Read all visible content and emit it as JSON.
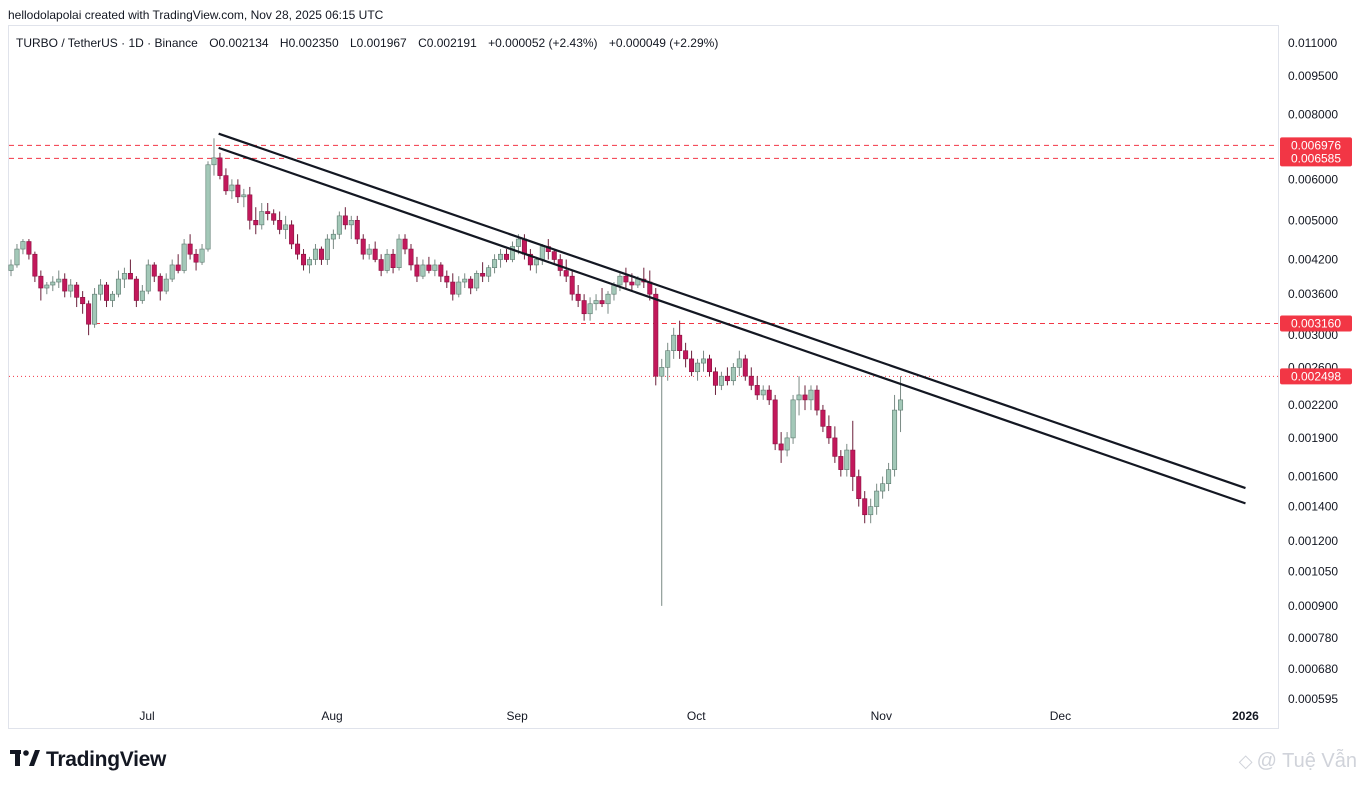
{
  "header": {
    "credit": "hellodolapolai created with TradingView.com, Nov 28, 2025 06:15 UTC"
  },
  "legend": {
    "symbol": "TURBO / TetherUS · 1D · Binance",
    "open": "O0.002134",
    "high": "H0.002350",
    "low": "L0.001967",
    "close": "C0.002191",
    "change": "+0.000052 (+2.43%)",
    "change2": "+0.000049 (+2.29%)"
  },
  "footer": {
    "brand": "TradingView",
    "watermark": "@ Tuệ Vẫn"
  },
  "colors": {
    "up": "#a3c8b8",
    "down": "#c2185b",
    "level": "#f23645",
    "trend": "#131722"
  },
  "chart_data": {
    "type": "candlestick",
    "scale": "log",
    "y_ticks": [
      "0.011000",
      "0.009500",
      "0.008000",
      "0.006000",
      "0.005000",
      "0.004200",
      "0.003600",
      "0.003000",
      "0.002600",
      "0.002200",
      "0.001900",
      "0.001600",
      "0.001400",
      "0.001200",
      "0.001050",
      "0.000900",
      "0.000780",
      "0.000680",
      "0.000595"
    ],
    "x_ticks": [
      "Jul",
      "Aug",
      "Sep",
      "Oct",
      "Nov",
      "Dec",
      "2026"
    ],
    "price_levels": [
      {
        "label": "0.006976",
        "value": 0.006976,
        "style": "dashed"
      },
      {
        "label": "0.006585",
        "value": 0.006585,
        "style": "dashed"
      },
      {
        "label": "0.003160",
        "value": 0.00316,
        "style": "dashed"
      },
      {
        "label": "0.002498",
        "value": 0.002498,
        "style": "dotted"
      }
    ],
    "trendlines": [
      {
        "from": [
          "2025-07-13",
          0.00735
        ],
        "to": [
          "2026-01-01",
          0.00152
        ]
      },
      {
        "from": [
          "2025-07-13",
          0.0069
        ],
        "to": [
          "2026-01-01",
          0.00142
        ]
      }
    ],
    "candles": [
      [
        0.004,
        0.0042,
        0.0039,
        0.0041
      ],
      [
        0.0041,
        0.0045,
        0.00405,
        0.0044
      ],
      [
        0.0044,
        0.0046,
        0.0043,
        0.00455
      ],
      [
        0.00455,
        0.0046,
        0.0042,
        0.0043
      ],
      [
        0.0043,
        0.00435,
        0.0038,
        0.0039
      ],
      [
        0.0039,
        0.004,
        0.0035,
        0.0037
      ],
      [
        0.0037,
        0.0038,
        0.0036,
        0.00375
      ],
      [
        0.00375,
        0.0039,
        0.00365,
        0.0038
      ],
      [
        0.0038,
        0.004,
        0.0037,
        0.00385
      ],
      [
        0.00385,
        0.00395,
        0.00355,
        0.00365
      ],
      [
        0.00365,
        0.00385,
        0.00355,
        0.00375
      ],
      [
        0.00375,
        0.0038,
        0.0034,
        0.00355
      ],
      [
        0.00355,
        0.00365,
        0.0033,
        0.00345
      ],
      [
        0.00345,
        0.0035,
        0.003,
        0.00315
      ],
      [
        0.00315,
        0.0037,
        0.0031,
        0.0036
      ],
      [
        0.0036,
        0.00385,
        0.0035,
        0.00375
      ],
      [
        0.00375,
        0.0038,
        0.0034,
        0.0035
      ],
      [
        0.0035,
        0.00365,
        0.0034,
        0.0036
      ],
      [
        0.0036,
        0.004,
        0.00355,
        0.00385
      ],
      [
        0.00385,
        0.00405,
        0.0037,
        0.00395
      ],
      [
        0.00395,
        0.0042,
        0.00385,
        0.00385
      ],
      [
        0.00385,
        0.0039,
        0.0034,
        0.0035
      ],
      [
        0.0035,
        0.00375,
        0.00345,
        0.00365
      ],
      [
        0.00365,
        0.0042,
        0.0036,
        0.0041
      ],
      [
        0.0041,
        0.00415,
        0.0038,
        0.0039
      ],
      [
        0.0039,
        0.00395,
        0.0035,
        0.00365
      ],
      [
        0.00365,
        0.00395,
        0.0036,
        0.00385
      ],
      [
        0.00385,
        0.0042,
        0.0038,
        0.0041
      ],
      [
        0.0041,
        0.0043,
        0.00395,
        0.004
      ],
      [
        0.004,
        0.0046,
        0.00395,
        0.0045
      ],
      [
        0.0045,
        0.0047,
        0.0042,
        0.0043
      ],
      [
        0.0043,
        0.0044,
        0.004,
        0.00415
      ],
      [
        0.00415,
        0.0045,
        0.0041,
        0.0044
      ],
      [
        0.0044,
        0.0065,
        0.00435,
        0.0064
      ],
      [
        0.0064,
        0.0072,
        0.0061,
        0.0066
      ],
      [
        0.0066,
        0.00675,
        0.006,
        0.0061
      ],
      [
        0.0061,
        0.0063,
        0.0056,
        0.0057
      ],
      [
        0.0057,
        0.006,
        0.0055,
        0.00585
      ],
      [
        0.00585,
        0.006,
        0.0054,
        0.00555
      ],
      [
        0.00555,
        0.00575,
        0.0053,
        0.0056
      ],
      [
        0.0056,
        0.0058,
        0.0048,
        0.005
      ],
      [
        0.005,
        0.0053,
        0.0047,
        0.0049
      ],
      [
        0.0049,
        0.0054,
        0.0048,
        0.0052
      ],
      [
        0.0052,
        0.0054,
        0.005,
        0.00515
      ],
      [
        0.00515,
        0.00525,
        0.0049,
        0.005
      ],
      [
        0.005,
        0.0052,
        0.0047,
        0.0048
      ],
      [
        0.0048,
        0.0051,
        0.0046,
        0.0049
      ],
      [
        0.0049,
        0.005,
        0.0044,
        0.0045
      ],
      [
        0.0045,
        0.0047,
        0.0042,
        0.0043
      ],
      [
        0.0043,
        0.0044,
        0.004,
        0.0041
      ],
      [
        0.0041,
        0.00425,
        0.00395,
        0.0042
      ],
      [
        0.0042,
        0.0045,
        0.0041,
        0.0044
      ],
      [
        0.0044,
        0.00445,
        0.0041,
        0.0042
      ],
      [
        0.0042,
        0.0047,
        0.0041,
        0.0046
      ],
      [
        0.0046,
        0.0048,
        0.0044,
        0.0047
      ],
      [
        0.0047,
        0.0052,
        0.0046,
        0.0051
      ],
      [
        0.0051,
        0.0053,
        0.0048,
        0.0049
      ],
      [
        0.0049,
        0.0051,
        0.0046,
        0.005
      ],
      [
        0.005,
        0.0051,
        0.0045,
        0.0046
      ],
      [
        0.0046,
        0.0047,
        0.0042,
        0.0043
      ],
      [
        0.0043,
        0.0045,
        0.0042,
        0.0044
      ],
      [
        0.0044,
        0.00455,
        0.00415,
        0.0042
      ],
      [
        0.0042,
        0.0043,
        0.0039,
        0.004
      ],
      [
        0.004,
        0.0044,
        0.00395,
        0.0043
      ],
      [
        0.0043,
        0.0044,
        0.00395,
        0.00405
      ],
      [
        0.00405,
        0.0047,
        0.004,
        0.0046
      ],
      [
        0.0046,
        0.0047,
        0.0043,
        0.0044
      ],
      [
        0.0044,
        0.0045,
        0.004,
        0.0041
      ],
      [
        0.0041,
        0.00425,
        0.0038,
        0.0039
      ],
      [
        0.0039,
        0.0042,
        0.00385,
        0.0041
      ],
      [
        0.0041,
        0.00425,
        0.00395,
        0.004
      ],
      [
        0.004,
        0.0042,
        0.0039,
        0.0041
      ],
      [
        0.0041,
        0.00415,
        0.0038,
        0.0039
      ],
      [
        0.0039,
        0.004,
        0.0037,
        0.0038
      ],
      [
        0.0038,
        0.00395,
        0.0035,
        0.0036
      ],
      [
        0.0036,
        0.0039,
        0.00355,
        0.0038
      ],
      [
        0.0038,
        0.00395,
        0.0037,
        0.00385
      ],
      [
        0.00385,
        0.0039,
        0.0036,
        0.0037
      ],
      [
        0.0037,
        0.004,
        0.00365,
        0.00395
      ],
      [
        0.00395,
        0.00415,
        0.0038,
        0.0039
      ],
      [
        0.0039,
        0.0041,
        0.0038,
        0.00405
      ],
      [
        0.00405,
        0.0043,
        0.00395,
        0.0042
      ],
      [
        0.0042,
        0.0044,
        0.00405,
        0.0043
      ],
      [
        0.0043,
        0.0044,
        0.00415,
        0.0042
      ],
      [
        0.0042,
        0.00455,
        0.00415,
        0.00445
      ],
      [
        0.00445,
        0.0047,
        0.0043,
        0.0046
      ],
      [
        0.0046,
        0.0047,
        0.0042,
        0.0043
      ],
      [
        0.0043,
        0.0044,
        0.004,
        0.0041
      ],
      [
        0.0041,
        0.00425,
        0.00395,
        0.0042
      ],
      [
        0.0042,
        0.0045,
        0.0041,
        0.00445
      ],
      [
        0.00445,
        0.0046,
        0.0042,
        0.00435
      ],
      [
        0.00435,
        0.0044,
        0.0041,
        0.0042
      ],
      [
        0.0042,
        0.0043,
        0.0039,
        0.004
      ],
      [
        0.004,
        0.0042,
        0.0038,
        0.0039
      ],
      [
        0.0039,
        0.004,
        0.0035,
        0.0036
      ],
      [
        0.0036,
        0.00375,
        0.0034,
        0.0035
      ],
      [
        0.0035,
        0.0036,
        0.0032,
        0.0033
      ],
      [
        0.0033,
        0.00355,
        0.0032,
        0.00345
      ],
      [
        0.00345,
        0.0036,
        0.00335,
        0.0035
      ],
      [
        0.0035,
        0.0037,
        0.0034,
        0.00345
      ],
      [
        0.00345,
        0.00365,
        0.0033,
        0.0036
      ],
      [
        0.0036,
        0.0038,
        0.0035,
        0.00375
      ],
      [
        0.00375,
        0.00395,
        0.00365,
        0.0039
      ],
      [
        0.0039,
        0.00405,
        0.0037,
        0.0038
      ],
      [
        0.0038,
        0.00395,
        0.00365,
        0.00375
      ],
      [
        0.00375,
        0.0039,
        0.0037,
        0.00385
      ],
      [
        0.00385,
        0.00405,
        0.0037,
        0.0038
      ],
      [
        0.0038,
        0.004,
        0.0035,
        0.0036
      ],
      [
        0.0036,
        0.0037,
        0.0024,
        0.0025
      ],
      [
        0.0025,
        0.0027,
        0.0009,
        0.0026
      ],
      [
        0.0026,
        0.0029,
        0.00245,
        0.0028
      ],
      [
        0.0028,
        0.0031,
        0.0027,
        0.003
      ],
      [
        0.003,
        0.0032,
        0.0027,
        0.0028
      ],
      [
        0.0028,
        0.0029,
        0.0026,
        0.0027
      ],
      [
        0.0027,
        0.0028,
        0.0025,
        0.00255
      ],
      [
        0.00255,
        0.0027,
        0.00245,
        0.00265
      ],
      [
        0.00265,
        0.0028,
        0.00255,
        0.0027
      ],
      [
        0.0027,
        0.00275,
        0.0025,
        0.00255
      ],
      [
        0.00255,
        0.0026,
        0.0023,
        0.0024
      ],
      [
        0.0024,
        0.00255,
        0.00235,
        0.0025
      ],
      [
        0.0025,
        0.0026,
        0.0024,
        0.00245
      ],
      [
        0.00245,
        0.00265,
        0.0024,
        0.0026
      ],
      [
        0.0026,
        0.0028,
        0.0025,
        0.0027
      ],
      [
        0.0027,
        0.00275,
        0.00245,
        0.0025
      ],
      [
        0.0025,
        0.0026,
        0.00235,
        0.0024
      ],
      [
        0.0024,
        0.0025,
        0.00225,
        0.0023
      ],
      [
        0.0023,
        0.0024,
        0.00225,
        0.00235
      ],
      [
        0.00235,
        0.0024,
        0.0022,
        0.00225
      ],
      [
        0.00225,
        0.0023,
        0.0018,
        0.00185
      ],
      [
        0.00185,
        0.00195,
        0.0017,
        0.0018
      ],
      [
        0.0018,
        0.00195,
        0.00175,
        0.0019
      ],
      [
        0.0019,
        0.0023,
        0.00185,
        0.00225
      ],
      [
        0.00225,
        0.0025,
        0.0021,
        0.0023
      ],
      [
        0.0023,
        0.0024,
        0.00215,
        0.00225
      ],
      [
        0.00225,
        0.0024,
        0.00215,
        0.00235
      ],
      [
        0.00235,
        0.0024,
        0.0021,
        0.00215
      ],
      [
        0.00215,
        0.0022,
        0.00195,
        0.002
      ],
      [
        0.002,
        0.0021,
        0.00185,
        0.0019
      ],
      [
        0.0019,
        0.002,
        0.0017,
        0.00175
      ],
      [
        0.00175,
        0.0018,
        0.0016,
        0.00165
      ],
      [
        0.00165,
        0.00185,
        0.0016,
        0.0018
      ],
      [
        0.0018,
        0.00205,
        0.0015,
        0.0016
      ],
      [
        0.0016,
        0.00165,
        0.0014,
        0.00145
      ],
      [
        0.00145,
        0.0015,
        0.0013,
        0.00135
      ],
      [
        0.00135,
        0.00145,
        0.0013,
        0.0014
      ],
      [
        0.0014,
        0.00155,
        0.00135,
        0.0015
      ],
      [
        0.0015,
        0.0016,
        0.00145,
        0.00155
      ],
      [
        0.00155,
        0.0017,
        0.0015,
        0.00165
      ],
      [
        0.00165,
        0.0023,
        0.0016,
        0.00215
      ],
      [
        0.00215,
        0.0025,
        0.00195,
        0.00225
      ]
    ]
  }
}
